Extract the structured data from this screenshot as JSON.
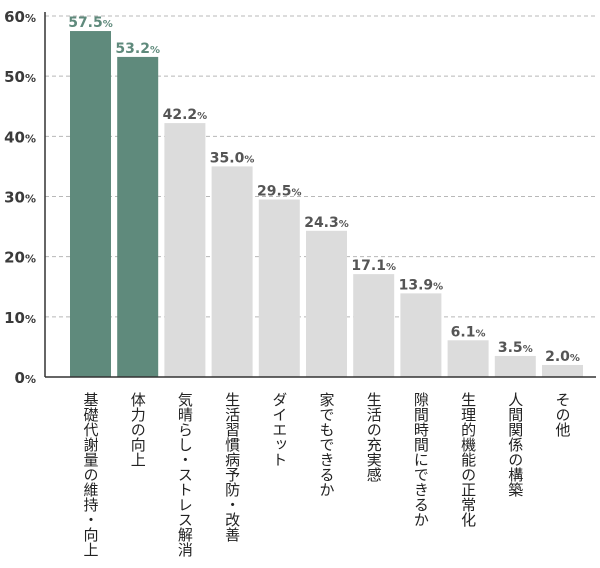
{
  "chart_data": {
    "type": "bar",
    "categories": [
      "基礎代謝量の維持・向上",
      "体力の向上",
      "気晴らし・ストレス解消",
      "生活習慣病予防・改善",
      "ダイエット",
      "家でもできるか",
      "生活の充実感",
      "隙間時間にできるか",
      "生理的機能の正常化",
      "人間関係の構築",
      "その他"
    ],
    "values": [
      57.5,
      53.2,
      42.2,
      35.0,
      29.5,
      24.3,
      17.1,
      13.9,
      6.1,
      3.5,
      2.0
    ],
    "value_labels": [
      "57.5",
      "53.2",
      "42.2",
      "35.0",
      "29.5",
      "24.3",
      "17.1",
      "13.9",
      "6.1",
      "3.5",
      "2.0"
    ],
    "unit": "%",
    "ylim": [
      0,
      60
    ],
    "yticks": [
      0,
      10,
      20,
      30,
      40,
      50,
      60
    ],
    "ytick_labels": [
      "0",
      "10",
      "20",
      "30",
      "40",
      "50",
      "60"
    ],
    "grid": true,
    "highlight_count": 2,
    "colors": {
      "highlight": "#5f8a7c",
      "normal": "#dcdcdc",
      "highlight_label": "#5f8a7c",
      "normal_label": "#555555",
      "grid": "#b8b8b8",
      "axis": "#333333"
    }
  }
}
